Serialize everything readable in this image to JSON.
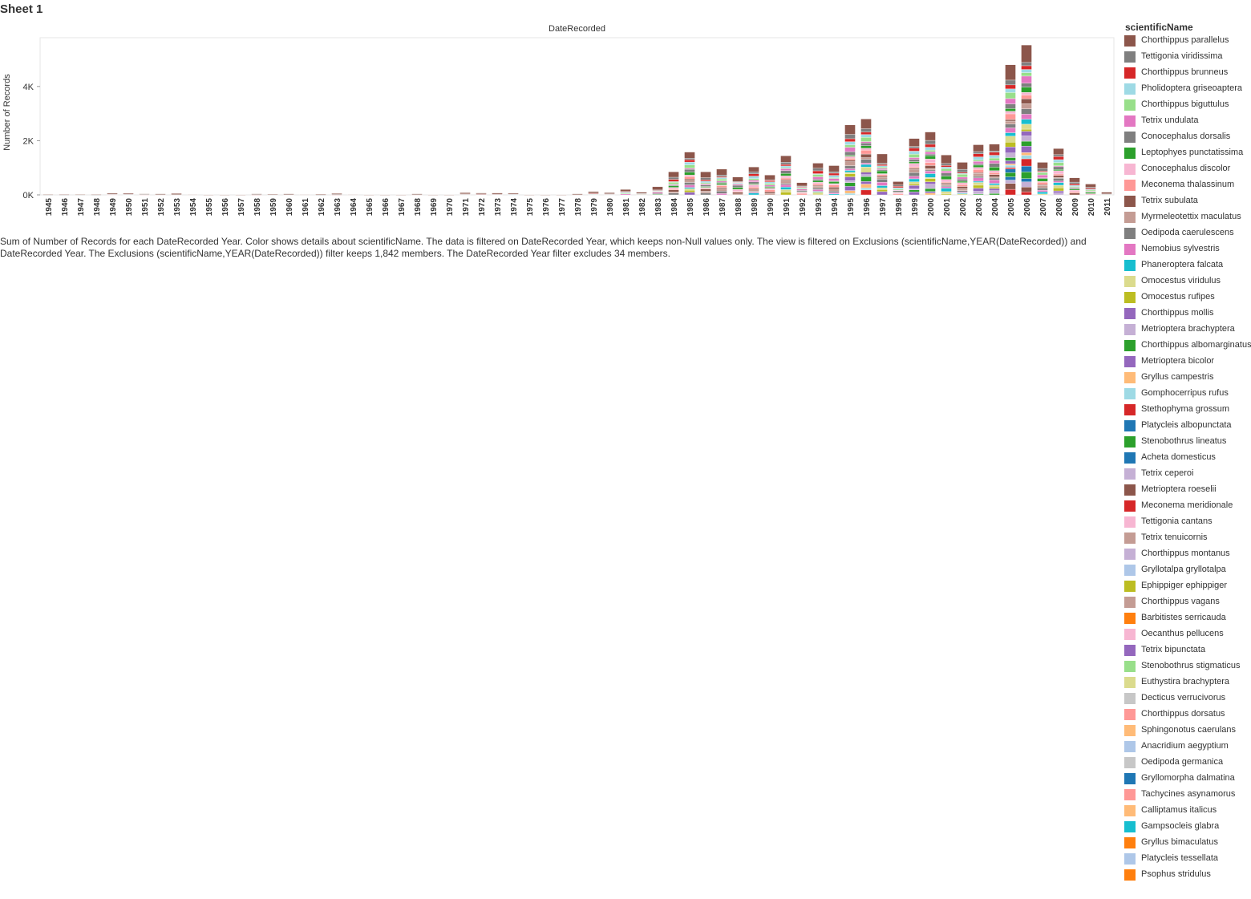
{
  "sheet": {
    "title": "Sheet 1"
  },
  "caption": "Sum of Number of Records for each DateRecorded Year.  Color shows details about scientificName. The data is filtered on DateRecorded Year, which keeps non-Null values only. The view is filtered on Exclusions (scientificName,YEAR(DateRecorded)) and DateRecorded Year. The Exclusions (scientificName,YEAR(DateRecorded)) filter keeps 1,842 members. The DateRecorded Year filter excludes 34 members.",
  "legend": {
    "title": "scientificName",
    "items": [
      {
        "label": "Chorthippus parallelus",
        "color": "#8c564b"
      },
      {
        "label": "Tettigonia viridissima",
        "color": "#7f7f7f"
      },
      {
        "label": "Chorthippus brunneus",
        "color": "#d62728"
      },
      {
        "label": "Pholidoptera griseoaptera",
        "color": "#9edae5"
      },
      {
        "label": "Chorthippus biguttulus",
        "color": "#98df8a"
      },
      {
        "label": "Tetrix undulata",
        "color": "#e377c2"
      },
      {
        "label": "Conocephalus dorsalis",
        "color": "#7f7f7f"
      },
      {
        "label": "Leptophyes punctatissima",
        "color": "#2ca02c"
      },
      {
        "label": "Conocephalus discolor",
        "color": "#f7b6d2"
      },
      {
        "label": "Meconema thalassinum",
        "color": "#ff9896"
      },
      {
        "label": "Tetrix subulata",
        "color": "#8c564b"
      },
      {
        "label": "Myrmeleotettix maculatus",
        "color": "#c49c94"
      },
      {
        "label": "Oedipoda caerulescens",
        "color": "#7f7f7f"
      },
      {
        "label": "Nemobius sylvestris",
        "color": "#e377c2"
      },
      {
        "label": "Phaneroptera falcata",
        "color": "#17becf"
      },
      {
        "label": "Omocestus viridulus",
        "color": "#dbdb8d"
      },
      {
        "label": "Omocestus rufipes",
        "color": "#bcbd22"
      },
      {
        "label": "Chorthippus mollis",
        "color": "#9467bd"
      },
      {
        "label": "Metrioptera brachyptera",
        "color": "#c5b0d5"
      },
      {
        "label": "Chorthippus albomarginatus",
        "color": "#2ca02c"
      },
      {
        "label": "Metrioptera bicolor",
        "color": "#9467bd"
      },
      {
        "label": "Gryllus campestris",
        "color": "#ffbb78"
      },
      {
        "label": "Gomphocerripus rufus",
        "color": "#9edae5"
      },
      {
        "label": "Stethophyma grossum",
        "color": "#d62728"
      },
      {
        "label": "Platycleis albopunctata",
        "color": "#1f77b4"
      },
      {
        "label": "Stenobothrus lineatus",
        "color": "#2ca02c"
      },
      {
        "label": "Acheta domesticus",
        "color": "#1f77b4"
      },
      {
        "label": "Tetrix ceperoi",
        "color": "#c5b0d5"
      },
      {
        "label": "Metrioptera roeselii",
        "color": "#8c564b"
      },
      {
        "label": "Meconema meridionale",
        "color": "#d62728"
      },
      {
        "label": "Tettigonia cantans",
        "color": "#f7b6d2"
      },
      {
        "label": "Tetrix tenuicornis",
        "color": "#c49c94"
      },
      {
        "label": "Chorthippus montanus",
        "color": "#c5b0d5"
      },
      {
        "label": "Gryllotalpa gryllotalpa",
        "color": "#aec7e8"
      },
      {
        "label": "Ephippiger ephippiger",
        "color": "#bcbd22"
      },
      {
        "label": "Chorthippus vagans",
        "color": "#c49c94"
      },
      {
        "label": "Barbitistes serricauda",
        "color": "#ff7f0e"
      },
      {
        "label": "Oecanthus pellucens",
        "color": "#f7b6d2"
      },
      {
        "label": "Tetrix bipunctata",
        "color": "#9467bd"
      },
      {
        "label": "Stenobothrus stigmaticus",
        "color": "#98df8a"
      },
      {
        "label": "Euthystira brachyptera",
        "color": "#dbdb8d"
      },
      {
        "label": "Decticus verrucivorus",
        "color": "#c7c7c7"
      },
      {
        "label": "Chorthippus dorsatus",
        "color": "#ff9896"
      },
      {
        "label": "Sphingonotus caerulans",
        "color": "#ffbb78"
      },
      {
        "label": "Anacridium aegyptium",
        "color": "#aec7e8"
      },
      {
        "label": "Oedipoda germanica",
        "color": "#c7c7c7"
      },
      {
        "label": "Gryllomorpha dalmatina",
        "color": "#1f77b4"
      },
      {
        "label": "Tachycines asynamorus",
        "color": "#ff9896"
      },
      {
        "label": "Calliptamus italicus",
        "color": "#ffbb78"
      },
      {
        "label": "Gampsocleis glabra",
        "color": "#17becf"
      },
      {
        "label": "Gryllus bimaculatus",
        "color": "#ff7f0e"
      },
      {
        "label": "Platycleis tessellata",
        "color": "#aec7e8"
      },
      {
        "label": "Psophus stridulus",
        "color": "#ff7f0e"
      }
    ]
  },
  "chart_data": {
    "type": "bar",
    "stacked": true,
    "title": "DateRecorded",
    "xlabel": "",
    "ylabel": "Number of Records",
    "ylim": [
      0,
      5800
    ],
    "yticks": [
      0,
      2000,
      4000
    ],
    "ytick_labels": [
      "0K",
      "2K",
      "4K"
    ],
    "grid": false,
    "legend_position": "right",
    "categories": [
      "1945",
      "1946",
      "1947",
      "1948",
      "1949",
      "1950",
      "1951",
      "1952",
      "1953",
      "1954",
      "1955",
      "1956",
      "1957",
      "1958",
      "1959",
      "1960",
      "1961",
      "1962",
      "1963",
      "1964",
      "1965",
      "1966",
      "1967",
      "1968",
      "1969",
      "1970",
      "1971",
      "1972",
      "1973",
      "1974",
      "1975",
      "1976",
      "1977",
      "1978",
      "1979",
      "1980",
      "1981",
      "1982",
      "1983",
      "1984",
      "1985",
      "1986",
      "1987",
      "1988",
      "1989",
      "1990",
      "1991",
      "1992",
      "1993",
      "1994",
      "1995",
      "1996",
      "1997",
      "1998",
      "1999",
      "2000",
      "2001",
      "2002",
      "2003",
      "2004",
      "2005",
      "2006",
      "2007",
      "2008",
      "2009",
      "2010",
      "2011"
    ],
    "totals": [
      20,
      25,
      20,
      25,
      60,
      60,
      40,
      40,
      50,
      10,
      5,
      5,
      5,
      40,
      30,
      40,
      10,
      30,
      50,
      10,
      5,
      5,
      5,
      40,
      5,
      5,
      80,
      70,
      70,
      60,
      5,
      5,
      5,
      40,
      120,
      80,
      200,
      100,
      300,
      850,
      1580,
      850,
      950,
      660,
      1030,
      730,
      1440,
      450,
      1170,
      1080,
      2580,
      2800,
      1510,
      490,
      2080,
      2320,
      1470,
      1200,
      1850,
      1870,
      4800,
      5530,
      1200,
      1710,
      630,
      400,
      100
    ],
    "segment_order": [
      "Chorthippus parallelus",
      "Tettigonia viridissima",
      "Chorthippus brunneus",
      "Pholidoptera griseoaptera",
      "Chorthippus biguttulus",
      "Tetrix undulata",
      "Conocephalus dorsalis",
      "Leptophyes punctatissima",
      "Conocephalus discolor",
      "Meconema thalassinum",
      "Tetrix subulata",
      "Myrmeleotettix maculatus",
      "Oedipoda caerulescens",
      "Nemobius sylvestris",
      "Phaneroptera falcata",
      "Omocestus viridulus",
      "Omocestus rufipes",
      "Chorthippus mollis",
      "Metrioptera brachyptera",
      "Chorthippus albomarginatus",
      "Metrioptera bicolor",
      "Gryllus campestris",
      "Gomphocerripus rufus",
      "Stethophyma grossum",
      "Platycleis albopunctata",
      "Stenobothrus lineatus",
      "Acheta domesticus",
      "Tetrix ceperoi",
      "Metrioptera roeselii",
      "Meconema meridionale"
    ]
  }
}
